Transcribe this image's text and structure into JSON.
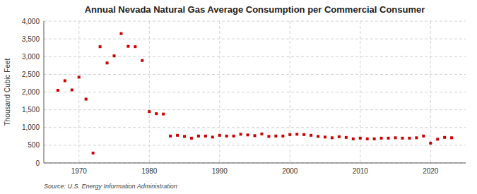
{
  "chart_data": {
    "type": "scatter",
    "title": "Annual Nevada Natural Gas Average Consumption per Commercial Consumer",
    "ylabel": "Thousand Cubic Feet",
    "annotation": "Source: U.S. Energy Information Administration",
    "color": "#cc0000",
    "marker": "square",
    "grid": true,
    "x": [
      1967,
      1968,
      1969,
      1970,
      1971,
      1972,
      1973,
      1974,
      1975,
      1976,
      1977,
      1978,
      1979,
      1980,
      1981,
      1982,
      1983,
      1984,
      1985,
      1986,
      1987,
      1988,
      1989,
      1990,
      1991,
      1992,
      1993,
      1994,
      1995,
      1996,
      1997,
      1998,
      1999,
      2000,
      2001,
      2002,
      2003,
      2004,
      2005,
      2006,
      2007,
      2008,
      2009,
      2010,
      2011,
      2012,
      2013,
      2014,
      2015,
      2016,
      2017,
      2018,
      2019,
      2020,
      2021,
      2022,
      2023
    ],
    "values": [
      2050,
      2320,
      2060,
      2420,
      1800,
      280,
      3280,
      2820,
      3020,
      3650,
      3290,
      3280,
      2890,
      1450,
      1390,
      1380,
      760,
      780,
      750,
      700,
      760,
      760,
      730,
      780,
      760,
      760,
      810,
      790,
      770,
      820,
      750,
      760,
      760,
      800,
      810,
      800,
      780,
      750,
      730,
      710,
      740,
      720,
      680,
      700,
      680,
      680,
      700,
      700,
      710,
      700,
      700,
      710,
      760,
      560,
      670,
      720,
      710
    ],
    "xlim": [
      1965,
      2025
    ],
    "xticks": [
      1970,
      1980,
      1990,
      2000,
      2010,
      2020
    ],
    "ylim": [
      0,
      4000
    ],
    "yticks": [
      0,
      500,
      {
        "value": 1000,
        "label": "1,000"
      },
      {
        "value": 1500,
        "label": "1,500"
      },
      {
        "value": 2000,
        "label": "2,000"
      },
      {
        "value": 2500,
        "label": "2,500"
      },
      {
        "value": 3000,
        "label": "3,000"
      },
      {
        "value": 3500,
        "label": "3,500"
      },
      {
        "value": 4000,
        "label": "4,000"
      }
    ]
  }
}
